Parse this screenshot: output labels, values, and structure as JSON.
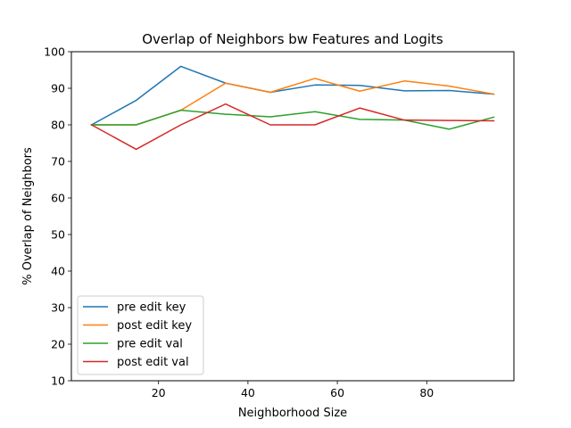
{
  "chart_data": {
    "type": "line",
    "title": "Overlap of Neighbors bw Features and Logits",
    "xlabel": "Neighborhood Size",
    "ylabel": "% Overlap of Neighbors",
    "xlim": [
      0.5,
      99.5
    ],
    "ylim": [
      10,
      100
    ],
    "xticks": [
      20,
      40,
      60,
      80
    ],
    "yticks": [
      10,
      20,
      30,
      40,
      50,
      60,
      70,
      80,
      90,
      100
    ],
    "grid": false,
    "legend_position": "lower-left",
    "x": [
      5,
      15,
      25,
      35,
      45,
      55,
      65,
      75,
      85,
      95
    ],
    "series": [
      {
        "name": "pre edit key",
        "color": "#1f77b4",
        "values": [
          80,
          86.7,
          96,
          91.4,
          88.9,
          90.9,
          90.8,
          89.3,
          89.4,
          88.4
        ]
      },
      {
        "name": "post edit key",
        "color": "#ff7f0e",
        "values": [
          80,
          80,
          84,
          91.4,
          88.9,
          92.7,
          89.2,
          92,
          90.6,
          88.4
        ]
      },
      {
        "name": "pre edit val",
        "color": "#2ca02c",
        "values": [
          80,
          80,
          84,
          82.9,
          82.2,
          83.6,
          81.5,
          81.3,
          78.8,
          82.1
        ]
      },
      {
        "name": "post edit val",
        "color": "#d62728",
        "values": [
          80,
          73.3,
          80,
          85.7,
          80,
          80,
          84.6,
          81.3,
          81.2,
          81.1
        ]
      }
    ]
  }
}
